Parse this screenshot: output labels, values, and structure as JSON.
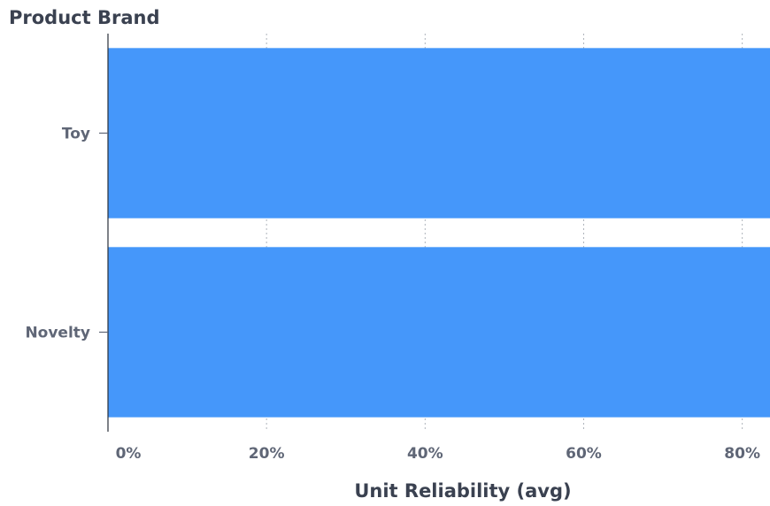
{
  "chart_data": {
    "type": "bar",
    "orientation": "horizontal",
    "ylabel": "Product Brand",
    "xlabel": "Unit Reliability (avg)",
    "categories": [
      "Toy",
      "Novelty"
    ],
    "series": [
      {
        "values": [
          0.85,
          0.85
        ],
        "color": "#4597fa"
      }
    ],
    "xlim": [
      0,
      0.835
    ],
    "xticks": [
      0,
      0.2,
      0.4,
      0.6,
      0.8
    ],
    "xtick_labels": [
      "0%",
      "20%",
      "40%",
      "60%",
      "80%"
    ],
    "grid": "vertical-dashed",
    "legend": "none"
  }
}
